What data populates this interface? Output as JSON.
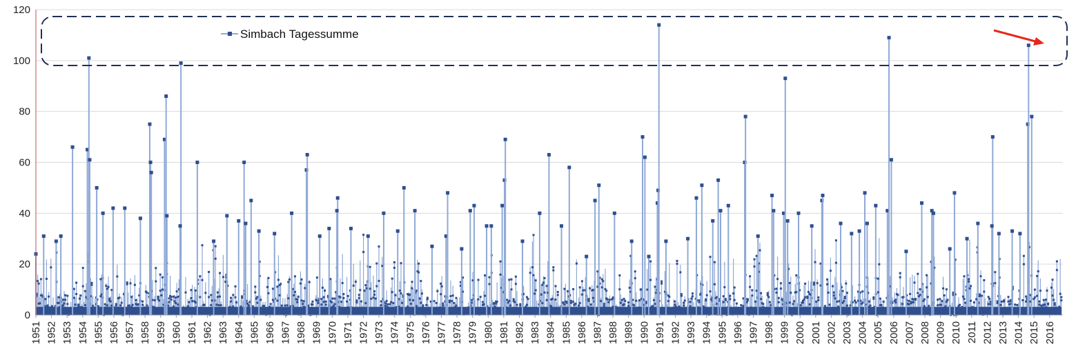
{
  "chart_data": {
    "type": "line",
    "title": "",
    "xlabel": "",
    "ylabel": "",
    "ylim": [
      0,
      120
    ],
    "yticks": [
      0,
      20,
      40,
      60,
      80,
      100,
      120
    ],
    "xticks": [
      "1951",
      "1952",
      "1953",
      "1954",
      "1955",
      "1956",
      "1957",
      "1958",
      "1959",
      "1960",
      "1961",
      "1962",
      "1963",
      "1964",
      "1965",
      "1966",
      "1967",
      "1968",
      "1969",
      "1970",
      "1971",
      "1972",
      "1973",
      "1974",
      "1975",
      "1976",
      "1977",
      "1978",
      "1979",
      "1980",
      "1981",
      "1982",
      "1983",
      "1984",
      "1985",
      "1986",
      "1987",
      "1988",
      "1989",
      "1990",
      "1991",
      "1992",
      "1993",
      "1994",
      "1995",
      "1996",
      "1997",
      "1998",
      "1999",
      "2000",
      "2001",
      "2002",
      "2003",
      "2004",
      "2005",
      "2006",
      "2007",
      "2008",
      "2009",
      "2010",
      "2011",
      "2012",
      "2013",
      "2014",
      "2015",
      "2016"
    ],
    "grid": "horizontal",
    "legend_position": "top-left",
    "series": [
      {
        "name": "Simbach Tagessumme",
        "line_color": "#8fa9d6",
        "marker_color": "#2f4f8f",
        "peaks": [
          {
            "x": 1951.0,
            "y": 24
          },
          {
            "x": 1951.5,
            "y": 31
          },
          {
            "x": 1952.3,
            "y": 29
          },
          {
            "x": 1952.6,
            "y": 31
          },
          {
            "x": 1953.35,
            "y": 66
          },
          {
            "x": 1954.3,
            "y": 65
          },
          {
            "x": 1954.4,
            "y": 101
          },
          {
            "x": 1954.45,
            "y": 61
          },
          {
            "x": 1954.9,
            "y": 50
          },
          {
            "x": 1955.3,
            "y": 40
          },
          {
            "x": 1955.95,
            "y": 42
          },
          {
            "x": 1956.7,
            "y": 42
          },
          {
            "x": 1957.7,
            "y": 38
          },
          {
            "x": 1958.3,
            "y": 75
          },
          {
            "x": 1958.35,
            "y": 60
          },
          {
            "x": 1958.4,
            "y": 56
          },
          {
            "x": 1959.25,
            "y": 69
          },
          {
            "x": 1959.35,
            "y": 86
          },
          {
            "x": 1959.4,
            "y": 39
          },
          {
            "x": 1960.3,
            "y": 99
          },
          {
            "x": 1960.25,
            "y": 35
          },
          {
            "x": 1961.35,
            "y": 60
          },
          {
            "x": 1962.4,
            "y": 29
          },
          {
            "x": 1963.25,
            "y": 39
          },
          {
            "x": 1964.0,
            "y": 37
          },
          {
            "x": 1964.35,
            "y": 60
          },
          {
            "x": 1964.45,
            "y": 36
          },
          {
            "x": 1964.8,
            "y": 45
          },
          {
            "x": 1965.3,
            "y": 33
          },
          {
            "x": 1966.3,
            "y": 32
          },
          {
            "x": 1967.4,
            "y": 40
          },
          {
            "x": 1968.35,
            "y": 57
          },
          {
            "x": 1968.4,
            "y": 63
          },
          {
            "x": 1969.2,
            "y": 31
          },
          {
            "x": 1969.8,
            "y": 34
          },
          {
            "x": 1970.35,
            "y": 46
          },
          {
            "x": 1970.3,
            "y": 41
          },
          {
            "x": 1971.2,
            "y": 34
          },
          {
            "x": 1972.3,
            "y": 31
          },
          {
            "x": 1973.3,
            "y": 40
          },
          {
            "x": 1974.2,
            "y": 33
          },
          {
            "x": 1974.6,
            "y": 50
          },
          {
            "x": 1975.3,
            "y": 41
          },
          {
            "x": 1976.4,
            "y": 27
          },
          {
            "x": 1977.3,
            "y": 31
          },
          {
            "x": 1977.4,
            "y": 48
          },
          {
            "x": 1978.3,
            "y": 26
          },
          {
            "x": 1978.85,
            "y": 41
          },
          {
            "x": 1979.1,
            "y": 43
          },
          {
            "x": 1979.9,
            "y": 35
          },
          {
            "x": 1980.2,
            "y": 35
          },
          {
            "x": 1980.9,
            "y": 43
          },
          {
            "x": 1981.05,
            "y": 53
          },
          {
            "x": 1981.1,
            "y": 69
          },
          {
            "x": 1982.2,
            "y": 29
          },
          {
            "x": 1983.3,
            "y": 40
          },
          {
            "x": 1983.9,
            "y": 63
          },
          {
            "x": 1984.7,
            "y": 35
          },
          {
            "x": 1985.2,
            "y": 58
          },
          {
            "x": 1986.3,
            "y": 23
          },
          {
            "x": 1986.85,
            "y": 45
          },
          {
            "x": 1987.1,
            "y": 51
          },
          {
            "x": 1988.1,
            "y": 40
          },
          {
            "x": 1989.2,
            "y": 29
          },
          {
            "x": 1989.9,
            "y": 70
          },
          {
            "x": 1990.05,
            "y": 62
          },
          {
            "x": 1990.3,
            "y": 23
          },
          {
            "x": 1990.85,
            "y": 44
          },
          {
            "x": 1990.9,
            "y": 49
          },
          {
            "x": 1990.95,
            "y": 114
          },
          {
            "x": 1991.4,
            "y": 29
          },
          {
            "x": 1992.8,
            "y": 30
          },
          {
            "x": 1993.35,
            "y": 46
          },
          {
            "x": 1993.7,
            "y": 51
          },
          {
            "x": 1994.4,
            "y": 37
          },
          {
            "x": 1994.75,
            "y": 53
          },
          {
            "x": 1994.9,
            "y": 41
          },
          {
            "x": 1995.4,
            "y": 43
          },
          {
            "x": 1996.45,
            "y": 60
          },
          {
            "x": 1996.5,
            "y": 78
          },
          {
            "x": 1997.3,
            "y": 31
          },
          {
            "x": 1998.2,
            "y": 47
          },
          {
            "x": 1998.3,
            "y": 41
          },
          {
            "x": 1998.95,
            "y": 40
          },
          {
            "x": 1999.05,
            "y": 93
          },
          {
            "x": 1999.2,
            "y": 37
          },
          {
            "x": 1999.9,
            "y": 40
          },
          {
            "x": 2000.75,
            "y": 35
          },
          {
            "x": 2001.4,
            "y": 45
          },
          {
            "x": 2001.45,
            "y": 47
          },
          {
            "x": 2002.6,
            "y": 36
          },
          {
            "x": 2003.3,
            "y": 32
          },
          {
            "x": 2003.8,
            "y": 33
          },
          {
            "x": 2004.15,
            "y": 48
          },
          {
            "x": 2004.3,
            "y": 36
          },
          {
            "x": 2004.85,
            "y": 43
          },
          {
            "x": 2005.6,
            "y": 41
          },
          {
            "x": 2005.7,
            "y": 109
          },
          {
            "x": 2005.85,
            "y": 61
          },
          {
            "x": 2006.8,
            "y": 25
          },
          {
            "x": 2007.8,
            "y": 44
          },
          {
            "x": 2008.45,
            "y": 41
          },
          {
            "x": 2008.55,
            "y": 40
          },
          {
            "x": 2009.6,
            "y": 26
          },
          {
            "x": 2009.9,
            "y": 48
          },
          {
            "x": 2010.7,
            "y": 30
          },
          {
            "x": 2011.4,
            "y": 36
          },
          {
            "x": 2012.35,
            "y": 70
          },
          {
            "x": 2012.3,
            "y": 35
          },
          {
            "x": 2012.75,
            "y": 32
          },
          {
            "x": 2013.6,
            "y": 33
          },
          {
            "x": 2014.1,
            "y": 32
          },
          {
            "x": 2014.6,
            "y": 75
          },
          {
            "x": 2014.65,
            "y": 106
          },
          {
            "x": 2014.85,
            "y": 78
          }
        ]
      }
    ],
    "annotations": [
      {
        "type": "dashed-rounded-box",
        "label": "",
        "x_range": [
          1951.5,
          2016.5
        ],
        "y_range": [
          98,
          117
        ]
      },
      {
        "type": "arrow",
        "color": "#e8261c",
        "points_to": {
          "x": 2014.62,
          "y": 107
        }
      }
    ]
  }
}
